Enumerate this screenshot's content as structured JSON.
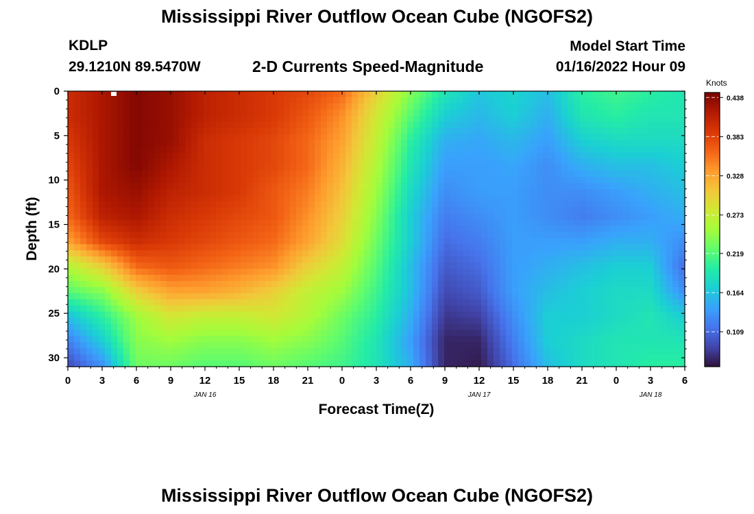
{
  "header": {
    "title": "Mississippi River Outflow Ocean Cube (NGOFS2)",
    "station_id": "KDLP",
    "coordinates": "29.1210N  89.5470W",
    "subtitle": "2-D Currents Speed-Magnitude",
    "model_start_label": "Model Start Time",
    "model_start_value": "01/16/2022 Hour 09"
  },
  "footer": {
    "title": "Mississippi River Outflow Ocean Cube (NGOFS2)"
  },
  "chart_data": {
    "type": "heatmap",
    "title": "2-D Currents Speed-Magnitude",
    "xlabel": "Forecast Time(Z)",
    "ylabel": "Depth (ft)",
    "x_tick_labels": [
      "0",
      "3",
      "6",
      "9",
      "12",
      "15",
      "18",
      "21",
      "0",
      "3",
      "6",
      "9",
      "12",
      "15",
      "18",
      "21",
      "0",
      "3",
      "6"
    ],
    "x_range_hours": [
      0,
      54
    ],
    "date_labels": [
      {
        "label": "JAN 16",
        "hour": 12
      },
      {
        "label": "JAN 17",
        "hour": 36
      },
      {
        "label": "JAN 18",
        "hour": 51
      }
    ],
    "y_ticks": [
      0,
      5,
      10,
      15,
      20,
      25,
      30
    ],
    "y_range_ft": [
      0,
      31
    ],
    "y_inverted": true,
    "colorbar": {
      "title": "Knots",
      "ticks": [
        0.438,
        0.383,
        0.328,
        0.273,
        0.219,
        0.164,
        0.109
      ],
      "range": [
        0.06,
        0.445
      ],
      "colormap": [
        "#30123b",
        "#4145ab",
        "#4675ed",
        "#39a2fc",
        "#1bcfd4",
        "#24eca6",
        "#61fc6c",
        "#a4fc3b",
        "#d1e834",
        "#f3c63a",
        "#fe9b2d",
        "#f36315",
        "#d93806",
        "#b11901",
        "#7a0402"
      ]
    },
    "speed_knots": [
      [
        0.4,
        0.42,
        0.44,
        0.43,
        0.41,
        0.4,
        0.39,
        0.38,
        0.36,
        0.3,
        0.24,
        0.19,
        0.165,
        0.175,
        0.16,
        0.2,
        0.21,
        0.2,
        0.19
      ],
      [
        0.4,
        0.42,
        0.44,
        0.43,
        0.41,
        0.4,
        0.39,
        0.37,
        0.34,
        0.28,
        0.22,
        0.17,
        0.155,
        0.17,
        0.15,
        0.19,
        0.2,
        0.19,
        0.19
      ],
      [
        0.39,
        0.42,
        0.44,
        0.43,
        0.4,
        0.39,
        0.38,
        0.36,
        0.33,
        0.27,
        0.2,
        0.15,
        0.145,
        0.155,
        0.14,
        0.17,
        0.18,
        0.18,
        0.18
      ],
      [
        0.38,
        0.42,
        0.44,
        0.42,
        0.4,
        0.39,
        0.38,
        0.36,
        0.32,
        0.26,
        0.19,
        0.14,
        0.14,
        0.145,
        0.13,
        0.15,
        0.16,
        0.16,
        0.17
      ],
      [
        0.37,
        0.42,
        0.43,
        0.41,
        0.4,
        0.39,
        0.37,
        0.35,
        0.31,
        0.25,
        0.18,
        0.13,
        0.14,
        0.14,
        0.13,
        0.13,
        0.14,
        0.15,
        0.16
      ],
      [
        0.36,
        0.41,
        0.42,
        0.4,
        0.39,
        0.38,
        0.37,
        0.34,
        0.3,
        0.24,
        0.17,
        0.12,
        0.13,
        0.14,
        0.13,
        0.12,
        0.13,
        0.14,
        0.15
      ],
      [
        0.33,
        0.38,
        0.4,
        0.39,
        0.38,
        0.37,
        0.36,
        0.33,
        0.29,
        0.23,
        0.17,
        0.11,
        0.12,
        0.14,
        0.14,
        0.14,
        0.15,
        0.15,
        0.13
      ],
      [
        0.26,
        0.3,
        0.36,
        0.37,
        0.36,
        0.35,
        0.34,
        0.3,
        0.27,
        0.22,
        0.16,
        0.1,
        0.11,
        0.14,
        0.15,
        0.16,
        0.17,
        0.17,
        0.11
      ],
      [
        0.22,
        0.24,
        0.3,
        0.33,
        0.33,
        0.32,
        0.3,
        0.27,
        0.25,
        0.21,
        0.16,
        0.09,
        0.1,
        0.14,
        0.16,
        0.17,
        0.18,
        0.18,
        0.13
      ],
      [
        0.16,
        0.2,
        0.25,
        0.28,
        0.27,
        0.27,
        0.28,
        0.26,
        0.23,
        0.2,
        0.15,
        0.08,
        0.085,
        0.13,
        0.17,
        0.17,
        0.18,
        0.19,
        0.17
      ],
      [
        0.12,
        0.17,
        0.24,
        0.25,
        0.24,
        0.24,
        0.25,
        0.24,
        0.22,
        0.19,
        0.14,
        0.07,
        0.07,
        0.12,
        0.17,
        0.18,
        0.19,
        0.19,
        0.19
      ],
      [
        0.09,
        0.13,
        0.23,
        0.23,
        0.22,
        0.22,
        0.23,
        0.22,
        0.21,
        0.19,
        0.15,
        0.07,
        0.065,
        0.11,
        0.16,
        0.18,
        0.19,
        0.2,
        0.2
      ]
    ]
  }
}
